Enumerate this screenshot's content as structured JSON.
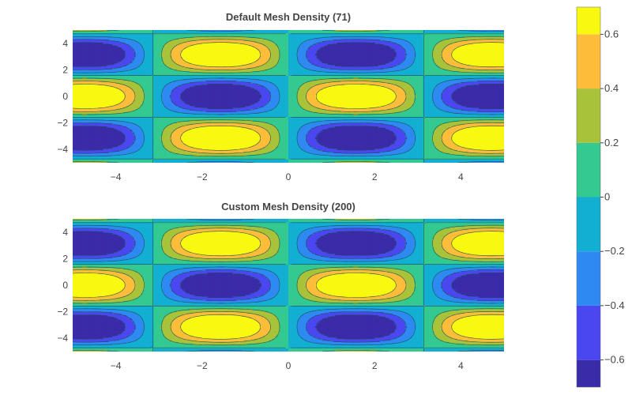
{
  "chart_data": [
    {
      "type": "contour",
      "title": "Default Mesh Density (71)",
      "function": "sin(x) * cos(y)",
      "x_range": [
        -5,
        5
      ],
      "y_range": [
        -5,
        5
      ],
      "mesh_points": 71,
      "xticks": [
        -4,
        -2,
        0,
        2,
        4
      ],
      "yticks": [
        -4,
        -2,
        0,
        2,
        4
      ],
      "xtick_labels": [
        "−4",
        "−2",
        "0",
        "2",
        "4"
      ],
      "ytick_labels": [
        "−4",
        "−2",
        "0",
        "2",
        "4"
      ]
    },
    {
      "type": "contour",
      "title": "Custom Mesh Density (200)",
      "function": "sin(x) * cos(y)",
      "x_range": [
        -5,
        5
      ],
      "y_range": [
        -5,
        5
      ],
      "mesh_points": 200,
      "xticks": [
        -4,
        -2,
        0,
        2,
        4
      ],
      "yticks": [
        -4,
        -2,
        0,
        2,
        4
      ],
      "xtick_labels": [
        "−4",
        "−2",
        "0",
        "2",
        "4"
      ],
      "ytick_labels": [
        "−4",
        "−2",
        "0",
        "2",
        "4"
      ]
    }
  ],
  "colorbar": {
    "range": [
      -0.7,
      0.7
    ],
    "levels": [
      -0.7,
      -0.6,
      -0.4,
      -0.2,
      0,
      0.2,
      0.4,
      0.6,
      0.7
    ],
    "colors": [
      "#3a2ba8",
      "#4a47f0",
      "#2e89f2",
      "#12afd3",
      "#33c991",
      "#a8c23a",
      "#fdbd3a",
      "#f8f810"
    ],
    "tick_values": [
      0.6,
      0.4,
      0.2,
      0,
      -0.2,
      -0.4,
      -0.6
    ],
    "tick_labels": [
      "0.6",
      "0.4",
      "0.2",
      "0",
      "−0.2",
      "−0.4",
      "−0.6"
    ]
  },
  "style": {
    "contour_line_color": "#1f4f4f",
    "text_color": "#444444",
    "background": "#ffffff"
  }
}
